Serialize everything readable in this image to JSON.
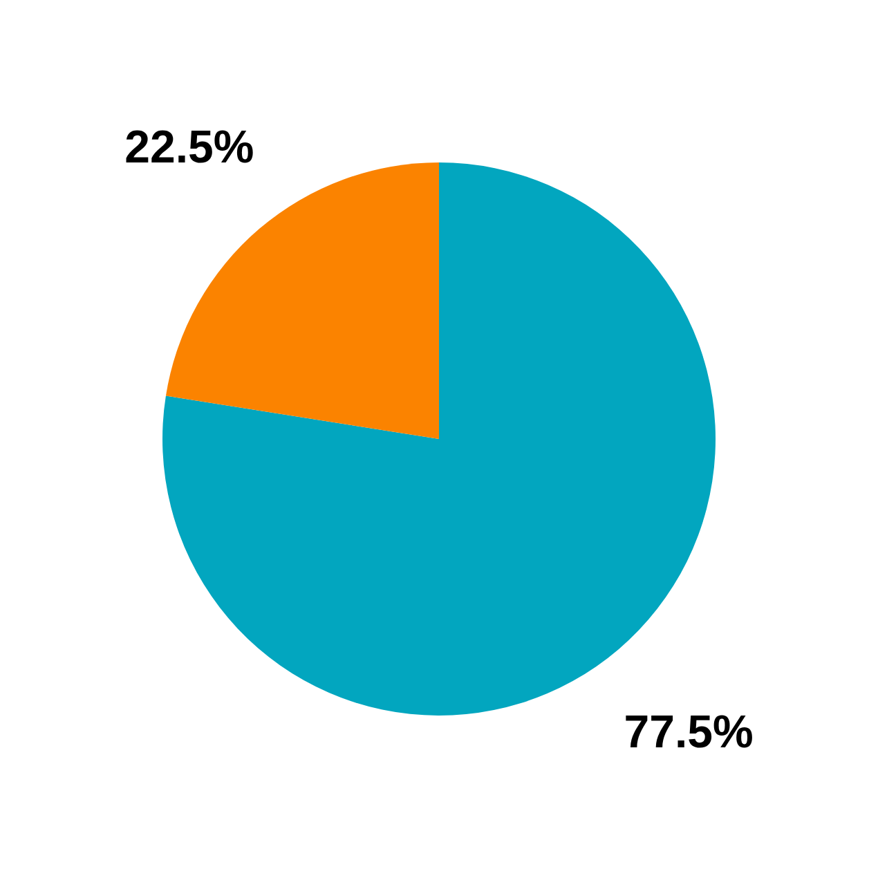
{
  "chart_data": {
    "type": "pie",
    "categories": [
      null,
      null
    ],
    "values": [
      77.5,
      22.5
    ],
    "colors": [
      "#02a6bf",
      "#fb8300"
    ],
    "value_labels": [
      "77.5%",
      "22.5%"
    ]
  }
}
